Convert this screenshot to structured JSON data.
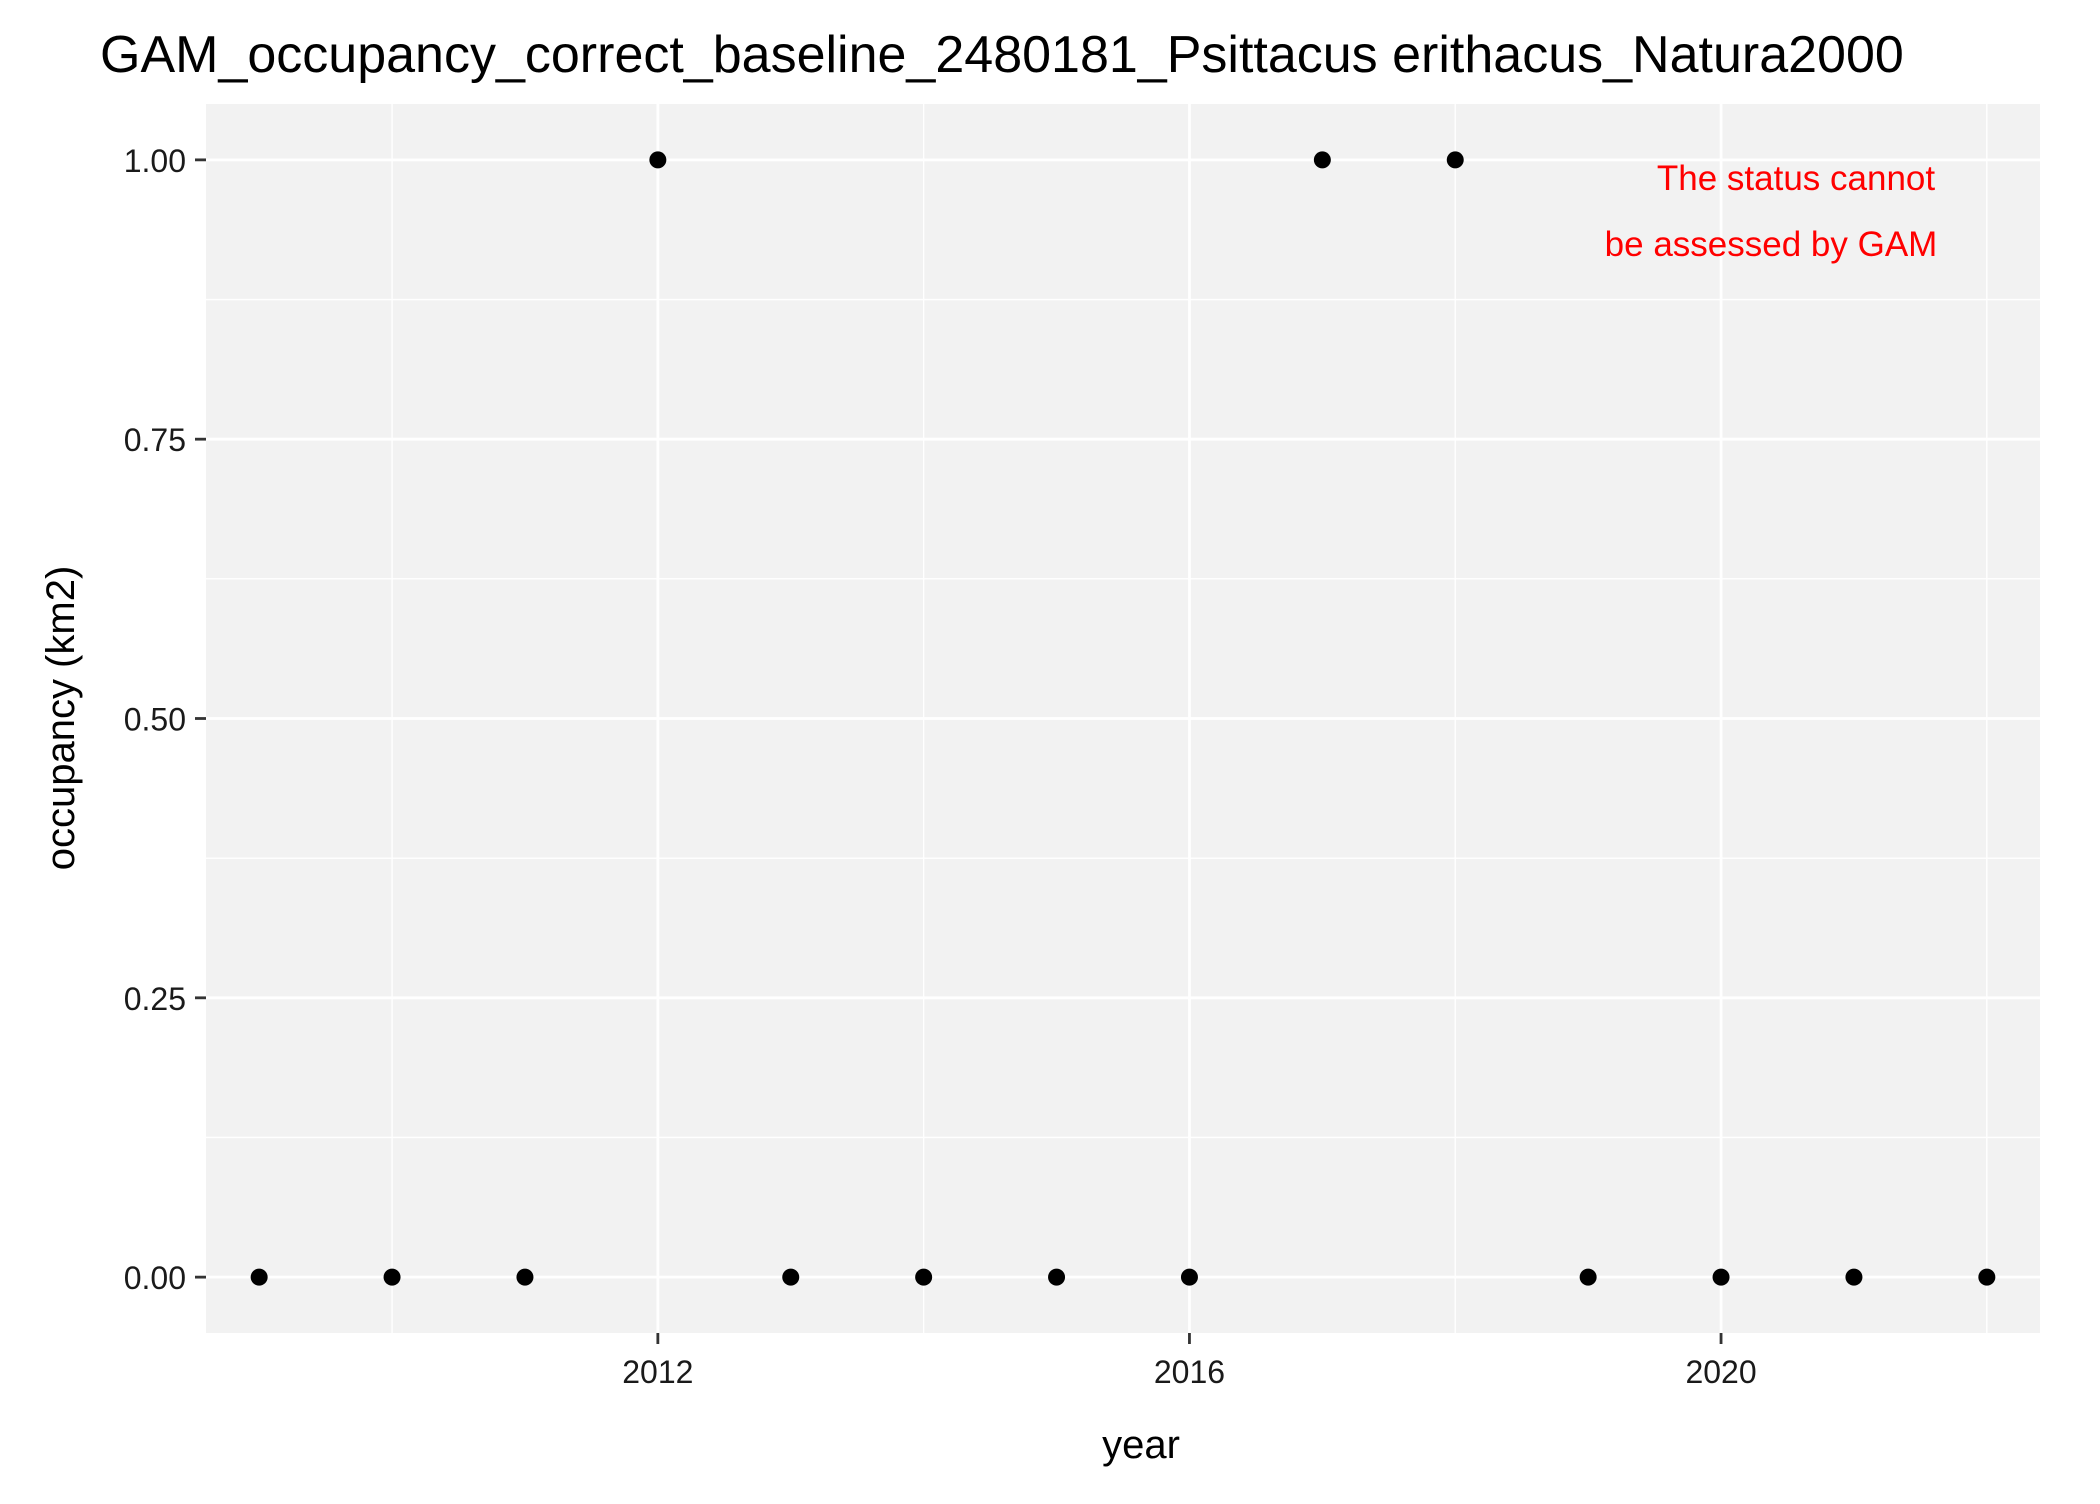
{
  "chart_data": {
    "type": "scatter",
    "title": "GAM_occupancy_correct_baseline_2480181_Psittacus erithacus_Natura2000",
    "xlabel": "year",
    "ylabel": "occupancy (km2)",
    "xlim": [
      2008.6,
      2022.4
    ],
    "ylim": [
      -0.05,
      1.05
    ],
    "x_ticks": [
      2012,
      2016,
      2020
    ],
    "x_minor_ticks": [
      2010,
      2014,
      2018,
      2022
    ],
    "y_ticks": [
      0,
      0.25,
      0.5,
      0.75,
      1.0
    ],
    "y_tick_labels": [
      "0.00",
      "0.25",
      "0.50",
      "0.75",
      "1.00"
    ],
    "y_minor_ticks": [
      0.125,
      0.375,
      0.625,
      0.875
    ],
    "grid": true,
    "legend": "none",
    "series": [
      {
        "x": [
          2009,
          2010,
          2011,
          2012,
          2013,
          2014,
          2015,
          2016,
          2017,
          2018,
          2019,
          2020,
          2021,
          2022
        ],
        "y": [
          0,
          0,
          0,
          1,
          0,
          0,
          0,
          0,
          1,
          1,
          0,
          0,
          0,
          0
        ]
      }
    ],
    "annotation": {
      "lines": [
        "The status cannot",
        "be assessed by GAM"
      ],
      "color": "#FF0000",
      "placement": "top-right"
    },
    "colors": {
      "panel_background": "#F2F2F2",
      "gridline": "#FFFFFF",
      "point": "#000000",
      "text": "#000000",
      "tick_label": "#1A1A1A",
      "axis_tick": "#333333"
    }
  }
}
